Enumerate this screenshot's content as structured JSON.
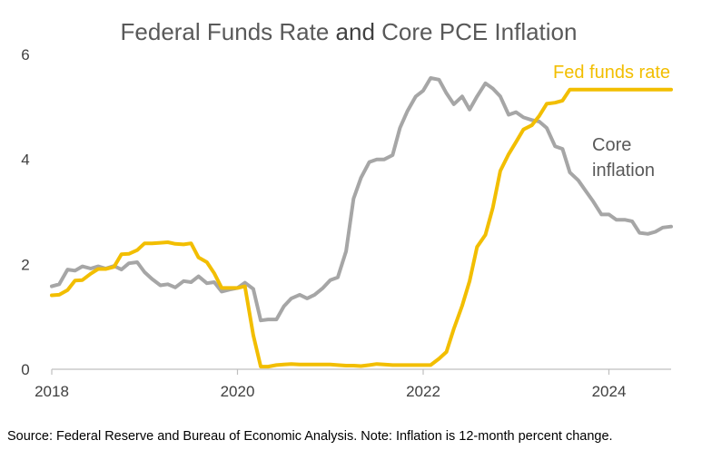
{
  "chart_data": {
    "type": "line",
    "title_parts": [
      {
        "text": "Federal Funds Rate",
        "color": "#595959"
      },
      {
        "text": "and",
        "color": "#404040"
      },
      {
        "text": "Core PCE Inflation",
        "color": "#595959"
      }
    ],
    "xlabel": "",
    "ylabel": "",
    "xlim": [
      2018.0,
      2024.67
    ],
    "ylim": [
      0,
      6
    ],
    "y_ticks": [
      "0",
      "2",
      "4",
      "6"
    ],
    "x_ticks": [
      {
        "value": 2018,
        "label": "2018"
      },
      {
        "value": 2020,
        "label": "2020"
      },
      {
        "value": 2022,
        "label": "2022"
      },
      {
        "value": 2024,
        "label": "2024"
      }
    ],
    "grid": false,
    "legend": "none",
    "series": [
      {
        "name": "Fed funds rate",
        "label": "Fed funds rate",
        "color": "#F2BE00",
        "x": [
          2018.0,
          2018.08,
          2018.17,
          2018.25,
          2018.33,
          2018.42,
          2018.5,
          2018.58,
          2018.67,
          2018.75,
          2018.83,
          2018.92,
          2019.0,
          2019.08,
          2019.17,
          2019.25,
          2019.33,
          2019.42,
          2019.5,
          2019.58,
          2019.67,
          2019.75,
          2019.83,
          2019.92,
          2020.0,
          2020.08,
          2020.17,
          2020.25,
          2020.33,
          2020.42,
          2020.5,
          2020.58,
          2020.67,
          2020.75,
          2020.83,
          2020.92,
          2021.0,
          2021.08,
          2021.17,
          2021.25,
          2021.33,
          2021.42,
          2021.5,
          2021.58,
          2021.67,
          2021.75,
          2021.83,
          2021.92,
          2022.0,
          2022.08,
          2022.17,
          2022.25,
          2022.33,
          2022.42,
          2022.5,
          2022.58,
          2022.67,
          2022.75,
          2022.83,
          2022.92,
          2023.0,
          2023.08,
          2023.17,
          2023.25,
          2023.33,
          2023.42,
          2023.5,
          2023.58,
          2023.67,
          2023.75,
          2023.83,
          2023.92,
          2024.0,
          2024.08,
          2024.17,
          2024.25,
          2024.33,
          2024.42,
          2024.5,
          2024.58,
          2024.67
        ],
        "values": [
          1.41,
          1.42,
          1.51,
          1.69,
          1.7,
          1.82,
          1.91,
          1.91,
          1.95,
          2.19,
          2.2,
          2.27,
          2.4,
          2.4,
          2.41,
          2.42,
          2.39,
          2.38,
          2.4,
          2.13,
          2.04,
          1.83,
          1.55,
          1.55,
          1.55,
          1.58,
          0.65,
          0.05,
          0.05,
          0.08,
          0.09,
          0.1,
          0.09,
          0.09,
          0.09,
          0.09,
          0.09,
          0.08,
          0.07,
          0.07,
          0.06,
          0.08,
          0.1,
          0.09,
          0.08,
          0.08,
          0.08,
          0.08,
          0.08,
          0.08,
          0.2,
          0.33,
          0.77,
          1.21,
          1.68,
          2.33,
          2.56,
          3.08,
          3.78,
          4.1,
          4.33,
          4.57,
          4.65,
          4.83,
          5.06,
          5.08,
          5.12,
          5.33,
          5.33,
          5.33,
          5.33,
          5.33,
          5.33,
          5.33,
          5.33,
          5.33,
          5.33,
          5.33,
          5.33,
          5.33,
          5.33
        ]
      },
      {
        "name": "Core inflation",
        "label": [
          "Core",
          "inflation"
        ],
        "color": "#A6A6A6",
        "x": [
          2018.0,
          2018.08,
          2018.17,
          2018.25,
          2018.33,
          2018.42,
          2018.5,
          2018.58,
          2018.67,
          2018.75,
          2018.83,
          2018.92,
          2019.0,
          2019.08,
          2019.17,
          2019.25,
          2019.33,
          2019.42,
          2019.5,
          2019.58,
          2019.67,
          2019.75,
          2019.83,
          2019.92,
          2020.0,
          2020.08,
          2020.17,
          2020.25,
          2020.33,
          2020.42,
          2020.5,
          2020.58,
          2020.67,
          2020.75,
          2020.83,
          2020.92,
          2021.0,
          2021.08,
          2021.17,
          2021.25,
          2021.33,
          2021.42,
          2021.5,
          2021.58,
          2021.67,
          2021.75,
          2021.83,
          2021.92,
          2022.0,
          2022.08,
          2022.17,
          2022.25,
          2022.33,
          2022.42,
          2022.5,
          2022.58,
          2022.67,
          2022.75,
          2022.83,
          2022.92,
          2023.0,
          2023.08,
          2023.17,
          2023.25,
          2023.33,
          2023.42,
          2023.5,
          2023.58,
          2023.67,
          2023.75,
          2023.83,
          2023.92,
          2024.0,
          2024.08,
          2024.17,
          2024.25,
          2024.33,
          2024.42,
          2024.5,
          2024.58,
          2024.67
        ],
        "values": [
          1.58,
          1.62,
          1.9,
          1.88,
          1.96,
          1.92,
          1.96,
          1.92,
          1.97,
          1.9,
          2.02,
          2.04,
          1.85,
          1.72,
          1.6,
          1.62,
          1.56,
          1.68,
          1.66,
          1.77,
          1.64,
          1.66,
          1.48,
          1.52,
          1.55,
          1.65,
          1.53,
          0.93,
          0.95,
          0.95,
          1.2,
          1.35,
          1.42,
          1.35,
          1.42,
          1.55,
          1.7,
          1.75,
          2.25,
          3.25,
          3.65,
          3.95,
          4.0,
          4.0,
          4.08,
          4.6,
          4.92,
          5.2,
          5.31,
          5.55,
          5.52,
          5.26,
          5.05,
          5.2,
          4.95,
          5.2,
          5.45,
          5.35,
          5.2,
          4.85,
          4.9,
          4.8,
          4.75,
          4.72,
          4.6,
          4.25,
          4.2,
          3.75,
          3.6,
          3.4,
          3.2,
          2.95,
          2.95,
          2.85,
          2.85,
          2.82,
          2.6,
          2.58,
          2.62,
          2.7,
          2.72
        ]
      }
    ]
  },
  "source_note": "Source: Federal Reserve and Bureau of Economic Analysis. Note: Inflation is 12-month percent change."
}
